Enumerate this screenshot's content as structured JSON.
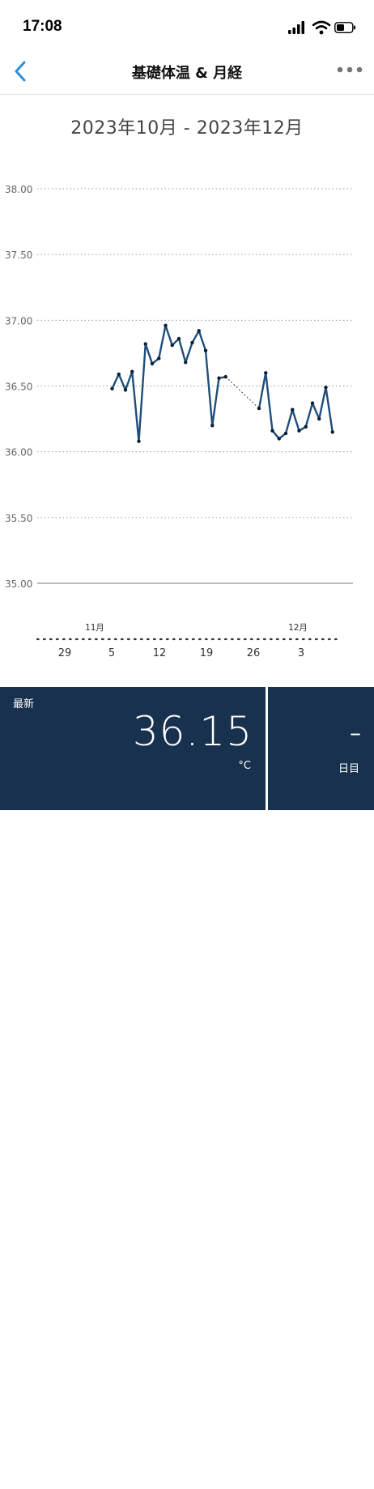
{
  "status_bar": {
    "time": "17:08"
  },
  "nav": {
    "title": "基礎体温 & 月経"
  },
  "date_range": "2023年10月 - 2023年12月",
  "colors": {
    "accent": "#1f4e7a",
    "nav_blue": "#2f8fd8",
    "panel": "#18314f",
    "grid": "#9a9a9a"
  },
  "chart_data": {
    "type": "line",
    "title": "",
    "ylim": [
      35.0,
      38.0
    ],
    "y_ticks": [
      "35.00",
      "35.50",
      "36.00",
      "36.50",
      "37.00",
      "37.50",
      "38.00"
    ],
    "x_ticks": [
      "29",
      "5",
      "12",
      "19",
      "26",
      "3"
    ],
    "month_labels": [
      "11月",
      "12月"
    ],
    "grid": true,
    "series": [
      {
        "values": [
          36.48,
          36.59,
          36.47,
          36.61,
          36.08,
          36.82,
          36.67,
          36.71,
          36.96,
          36.81,
          36.86,
          36.68,
          36.83,
          36.92,
          36.77,
          36.2,
          36.56,
          36.57,
          null,
          null,
          null,
          null,
          36.33,
          36.6,
          36.16,
          36.1,
          36.14,
          36.32,
          36.16,
          36.19,
          36.37,
          36.25,
          36.49,
          36.15
        ]
      }
    ]
  },
  "latest": {
    "label": "最新",
    "value": "36.15",
    "unit": "°C"
  },
  "day": {
    "value": "–",
    "label": "日目"
  }
}
